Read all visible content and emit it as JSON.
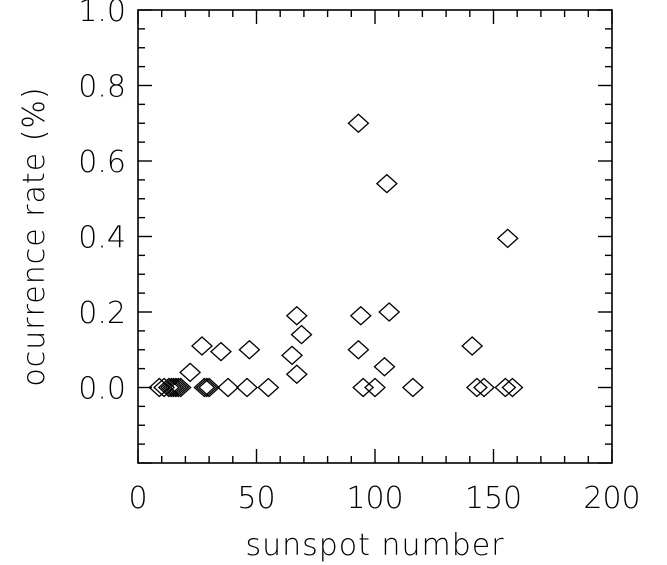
{
  "chart_data": {
    "type": "scatter",
    "title": "",
    "xlabel": "sunspot number",
    "ylabel": "ocurrence rate (%)",
    "xlim": [
      0,
      200
    ],
    "ylim": [
      -0.2,
      1.0
    ],
    "x_ticks": [
      0,
      50,
      100,
      150,
      200
    ],
    "x_tick_labels": [
      "0",
      "50",
      "100",
      "150",
      "200"
    ],
    "y_ticks": [
      0.0,
      0.2,
      0.4,
      0.6,
      0.8,
      1.0
    ],
    "y_tick_labels": [
      "0.0",
      "0.2",
      "0.4",
      "0.6",
      "0.8",
      "1.0"
    ],
    "marker": "diamond",
    "grid": false,
    "series": [
      {
        "points": [
          [
            9,
            0.0
          ],
          [
            11,
            0.0
          ],
          [
            13,
            0.0
          ],
          [
            14,
            0.0
          ],
          [
            15,
            0.0
          ],
          [
            16,
            0.0
          ],
          [
            17,
            0.0
          ],
          [
            18,
            0.0
          ],
          [
            22,
            0.04
          ],
          [
            27,
            0.11
          ],
          [
            28,
            0.0
          ],
          [
            29,
            0.0
          ],
          [
            30,
            0.0
          ],
          [
            35,
            0.095
          ],
          [
            38,
            0.0
          ],
          [
            46,
            0.0
          ],
          [
            47,
            0.1
          ],
          [
            55,
            0.0
          ],
          [
            65,
            0.085
          ],
          [
            67,
            0.19
          ],
          [
            67,
            0.035
          ],
          [
            69,
            0.14
          ],
          [
            93,
            0.7
          ],
          [
            93,
            0.1
          ],
          [
            94,
            0.19
          ],
          [
            95,
            0.0
          ],
          [
            100,
            0.0
          ],
          [
            104,
            0.055
          ],
          [
            105,
            0.54
          ],
          [
            106,
            0.2
          ],
          [
            116,
            0.0
          ],
          [
            141,
            0.11
          ],
          [
            143,
            0.0
          ],
          [
            146,
            0.0
          ],
          [
            155,
            0.0
          ],
          [
            156,
            0.395
          ],
          [
            158,
            0.0
          ]
        ]
      }
    ],
    "colors": {
      "marker": "#000000",
      "axes": "#000000",
      "background": "#ffffff"
    }
  }
}
